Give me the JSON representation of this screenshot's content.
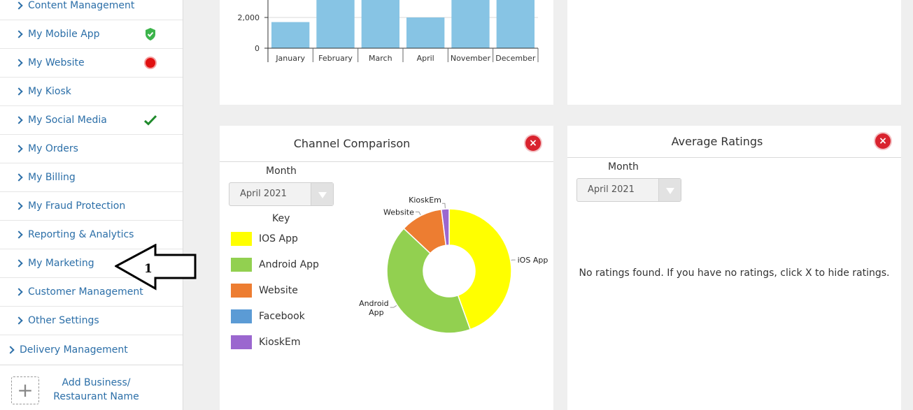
{
  "sidebar": {
    "items": [
      {
        "label": "Content Management",
        "status": null
      },
      {
        "label": "My Mobile App",
        "status": "shield-check"
      },
      {
        "label": "My Website",
        "status": "red-dot"
      },
      {
        "label": "My Kiosk",
        "status": null
      },
      {
        "label": "My Social Media",
        "status": "check"
      },
      {
        "label": "My Orders",
        "status": null
      },
      {
        "label": "My Billing",
        "status": null
      },
      {
        "label": "My Fraud Protection",
        "status": null
      },
      {
        "label": "Reporting & Analytics",
        "status": null
      },
      {
        "label": "My Marketing",
        "status": null
      },
      {
        "label": "Customer Management",
        "status": null
      },
      {
        "label": "Other Settings",
        "status": null
      },
      {
        "label": "Delivery Management",
        "status": null
      }
    ],
    "add_business_line1": "Add Business/",
    "add_business_line2": "Restaurant Name",
    "add_icon": "+"
  },
  "annotation": {
    "label": "1"
  },
  "bar_chart": {
    "chart_data": {
      "type": "bar",
      "categories": [
        "January",
        "February",
        "March",
        "April",
        "November",
        "December"
      ],
      "values": [
        1700,
        3200,
        3200,
        2000,
        3200,
        3200
      ],
      "ylim": [
        0,
        3200
      ],
      "yticks": [
        0,
        2000
      ],
      "ytick_labels": [
        "0",
        "2,000"
      ],
      "color": "#87c4e4"
    }
  },
  "channel_comparison": {
    "title": "Channel Comparison",
    "month_label": "Month",
    "month_value": "April 2021",
    "key_title": "Key",
    "key": [
      {
        "label": "IOS App",
        "color": "#ffff00"
      },
      {
        "label": "Android App",
        "color": "#92d050"
      },
      {
        "label": "Website",
        "color": "#ed7d31"
      },
      {
        "label": "Facebook",
        "color": "#5b9bd5"
      },
      {
        "label": "KioskEm",
        "color": "#9b67cf"
      }
    ],
    "chart_data": {
      "type": "pie",
      "donut": true,
      "slices": [
        {
          "label": "iOS App",
          "value": 44.5,
          "color": "#ffff00"
        },
        {
          "label": "Android App",
          "value": 42.5,
          "color": "#92d050"
        },
        {
          "label": "Website",
          "value": 11,
          "color": "#ed7d31"
        },
        {
          "label": "KioskEm",
          "value": 2,
          "color": "#9b67cf"
        }
      ],
      "label_texts": [
        "iOS App",
        "Android",
        "App",
        "Website",
        "KioskEm"
      ]
    }
  },
  "average_ratings": {
    "title": "Average Ratings",
    "month_label": "Month",
    "month_value": "April 2021",
    "empty_message": "No ratings found. If you have no ratings, click X to hide ratings."
  },
  "close_glyph": "×"
}
